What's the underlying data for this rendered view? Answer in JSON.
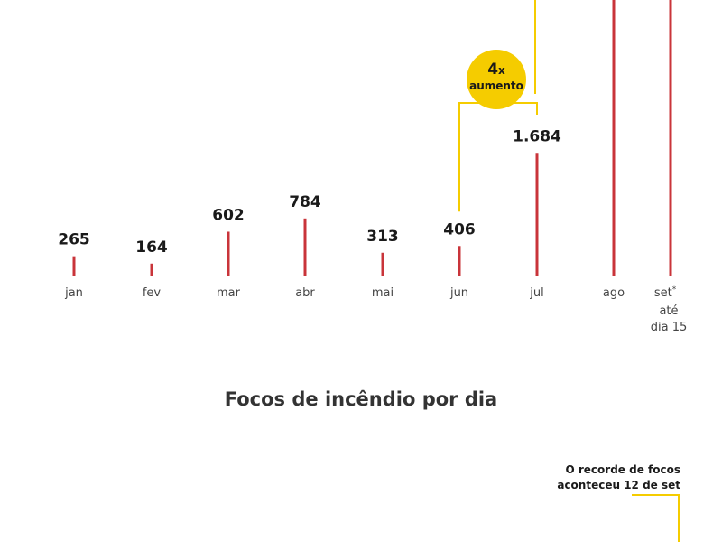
{
  "chart_data": {
    "type": "bar",
    "categories": [
      "jan",
      "fev",
      "mar",
      "abr",
      "mai",
      "jun",
      "jul",
      "ago",
      "set"
    ],
    "values": [
      265,
      164,
      602,
      784,
      313,
      406,
      1684,
      null,
      null
    ],
    "value_labels": [
      "265",
      "164",
      "602",
      "784",
      "313",
      "406",
      "1.684",
      "",
      ""
    ],
    "set_marker": "*",
    "set_note_lines": [
      "até",
      "dia 15"
    ],
    "title": "Focos de incêndio por dia",
    "annotation": {
      "multiplier": "4",
      "x_symbol": "x",
      "label": "aumento"
    },
    "colors": {
      "bar": "#c9343a",
      "highlight": "#f5cc00",
      "text": "#1a1a1a",
      "muted": "#444444"
    }
  },
  "note": {
    "line1": "O recorde de focos",
    "line2": "aconteceu 12 de set"
  }
}
